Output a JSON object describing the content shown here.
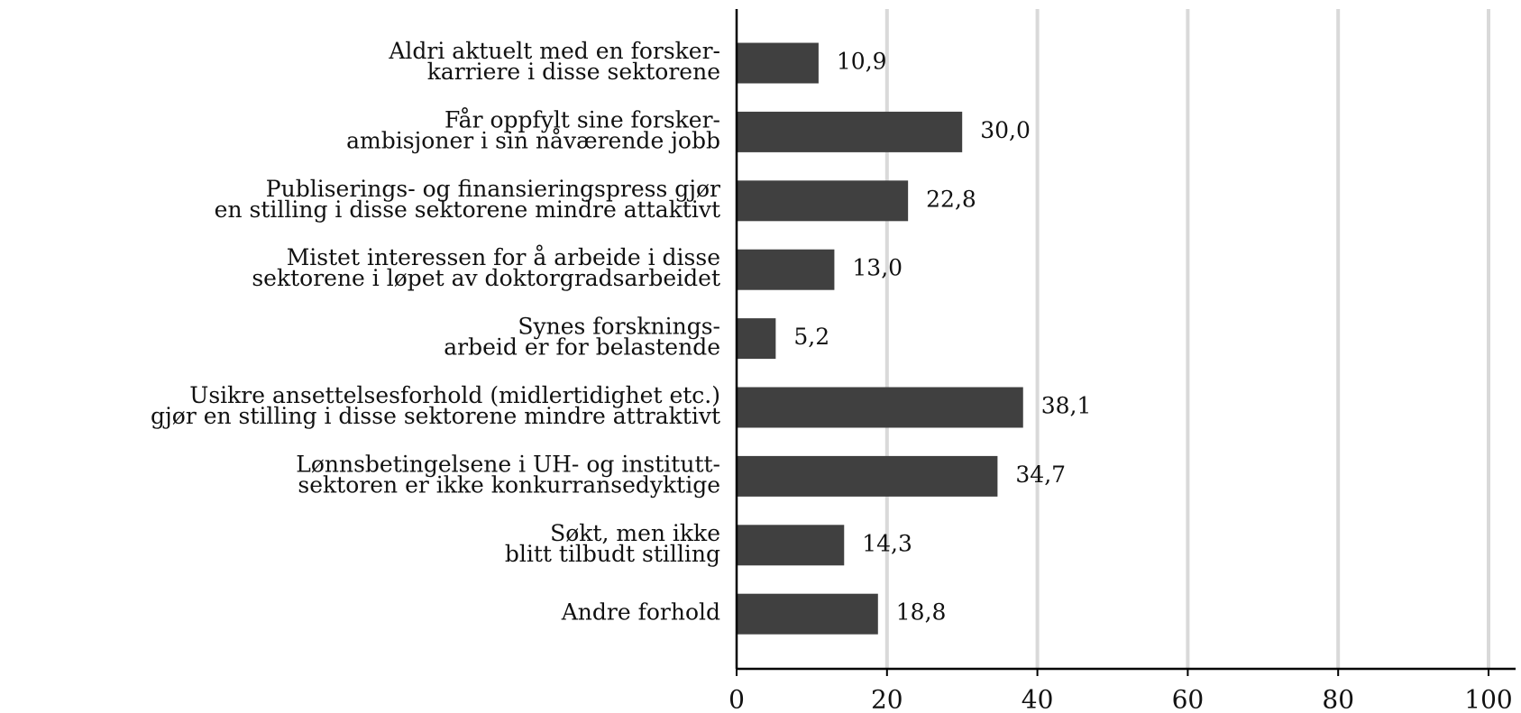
{
  "chart_data": {
    "type": "bar",
    "orientation": "horizontal",
    "categories": [
      [
        "Aldri aktuelt med en forsker-",
        "karriere i disse sektorene"
      ],
      [
        "Får oppfylt sine forsker-",
        "ambisjoner i sin nåværende jobb"
      ],
      [
        "Publiserings- og finansieringspress gjør",
        "en stilling i disse sektorene mindre attaktivt"
      ],
      [
        "Mistet interessen for å arbeide i disse",
        "sektorene i løpet av doktorgradsarbeidet"
      ],
      [
        "Synes forsknings-",
        "arbeid er for belastende"
      ],
      [
        "Usikre ansettelsesforhold (midlertidighet etc.)",
        "gjør en stilling i disse sektorene mindre attraktivt"
      ],
      [
        "Lønnsbetingelsene i UH- og institutt-",
        "sektoren er ikke konkurransedyktige"
      ],
      [
        "Søkt, men ikke",
        "blitt tilbudt stilling"
      ],
      [
        "Andre forhold"
      ]
    ],
    "values": [
      10.9,
      30.0,
      22.8,
      13.0,
      5.2,
      38.1,
      34.7,
      14.3,
      18.8
    ],
    "value_labels": [
      "10,9",
      "30,0",
      "22,8",
      "13,0",
      "5,2",
      "38,1",
      "34,7",
      "14,3",
      "18,8"
    ],
    "color": "#404040",
    "xlim": [
      0,
      100
    ],
    "xticks": [
      0,
      20,
      40,
      60,
      80,
      100
    ],
    "grid": true
  }
}
